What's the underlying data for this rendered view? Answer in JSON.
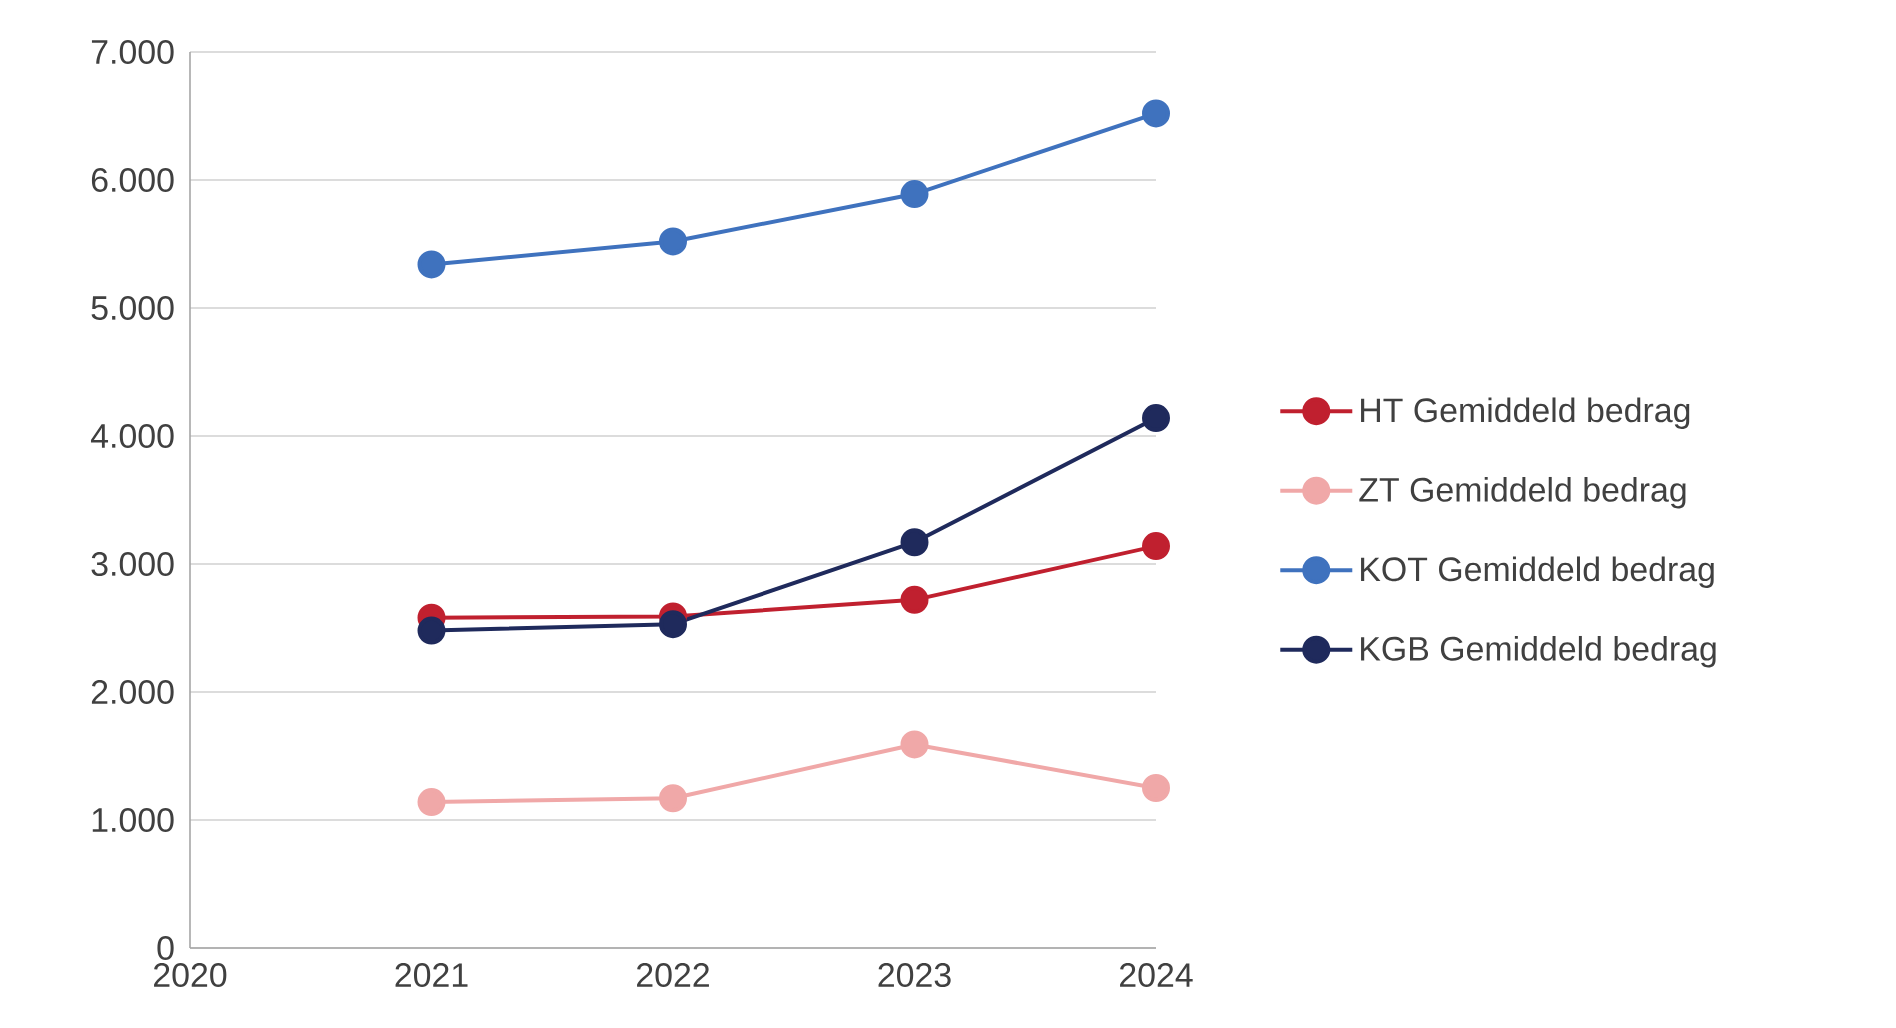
{
  "chart_data": {
    "type": "line",
    "x": [
      2021,
      2022,
      2023,
      2024
    ],
    "xlim": [
      2020,
      2024
    ],
    "xticks": [
      2020,
      2021,
      2022,
      2023,
      2024
    ],
    "ylim": [
      0,
      7000
    ],
    "yticks": [
      0,
      {
        "value": 1000,
        "label": "1.000"
      },
      {
        "value": 2000,
        "label": "2.000"
      },
      {
        "value": 3000,
        "label": "3.000"
      },
      {
        "value": 4000,
        "label": "4.000"
      },
      {
        "value": 5000,
        "label": "5.000"
      },
      {
        "value": 6000,
        "label": "6.000"
      },
      {
        "value": 7000,
        "label": "7.000"
      }
    ],
    "grid": "y",
    "legend": "right",
    "marker": "circle",
    "line_style": "solid",
    "series": [
      {
        "name": "HT Gemiddeld bedrag",
        "color": "#c0202f",
        "values": [
          2580,
          2590,
          2720,
          3140
        ]
      },
      {
        "name": "ZT Gemiddeld bedrag",
        "color": "#f0a8a8",
        "values": [
          1140,
          1170,
          1590,
          1250
        ]
      },
      {
        "name": "KOT Gemiddeld bedrag",
        "color": "#3f72be",
        "values": [
          5340,
          5520,
          5890,
          6520
        ]
      },
      {
        "name": "KGB Gemiddeld bedrag",
        "color": "#1f2a5c",
        "values": [
          2480,
          2530,
          3170,
          4140
        ]
      }
    ]
  }
}
